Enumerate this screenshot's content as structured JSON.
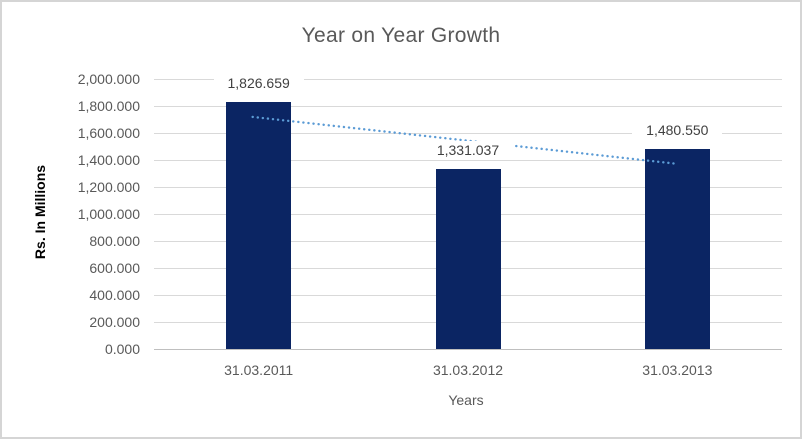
{
  "chart_data": {
    "type": "bar",
    "title": "Year on Year Growth",
    "categories": [
      "31.03.2011",
      "31.03.2012",
      "31.03.2013"
    ],
    "values": [
      1826.659,
      1331.037,
      1480.55
    ],
    "data_labels": [
      "1,826.659",
      "1,331.037",
      "1,480.550"
    ],
    "xlabel": "Years",
    "ylabel": "Rs. In Millions",
    "ylim": [
      0,
      2000
    ],
    "ytick_step": 200,
    "ytick_labels": [
      "0.000",
      "200.000",
      "400.000",
      "600.000",
      "800.000",
      "1,000.000",
      "1,200.000",
      "1,400.000",
      "1,600.000",
      "1,800.000",
      "2,000.000"
    ],
    "grid": true,
    "legend": "none",
    "trendline": {
      "type": "linear",
      "style": "dotted",
      "start_value": 1719.13,
      "end_value": 1373.03
    },
    "colors": {
      "bar": "#0b2563",
      "trendline": "#5b9bd5",
      "gridline": "#d9d9d9",
      "axis_line": "#bfbfbf",
      "title_text": "#595959",
      "tick_text": "#595959",
      "data_label_text": "#404040",
      "axis_title_text": "#000000",
      "border": "#d5d5d5",
      "background": "#ffffff"
    }
  }
}
